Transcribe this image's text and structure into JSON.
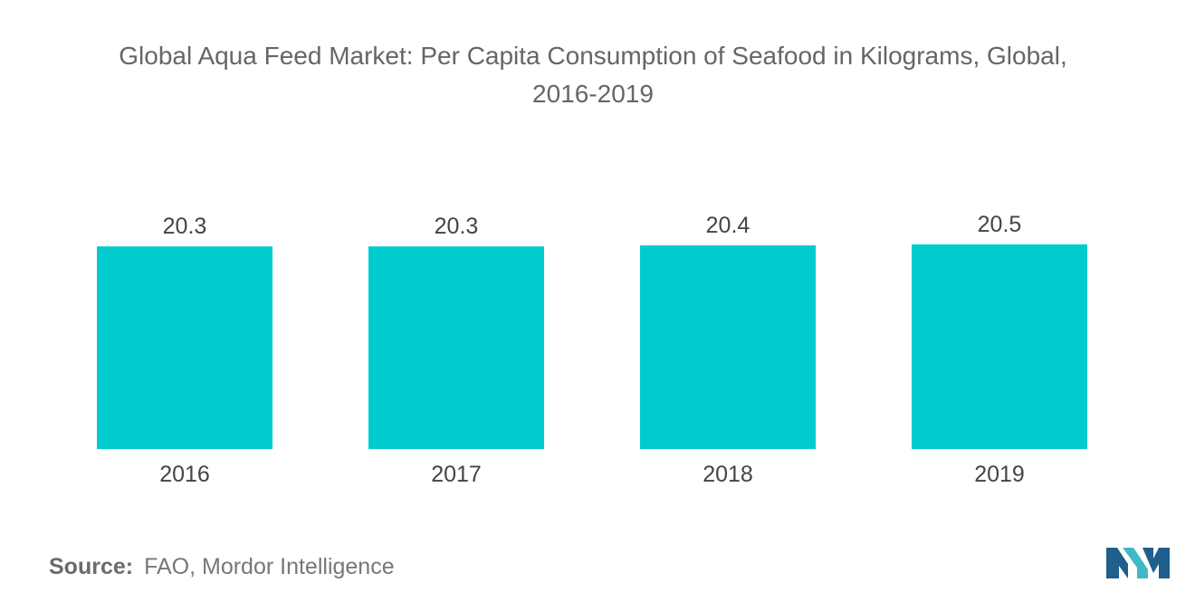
{
  "chart_data": {
    "type": "bar",
    "title": "Global Aqua Feed Market: Per Capita Consumption of Seafood in Kilograms, Global,",
    "title_line2": "2016-2019",
    "categories": [
      "2016",
      "2017",
      "2018",
      "2019"
    ],
    "values": [
      20.3,
      20.3,
      20.4,
      20.5
    ],
    "value_labels": [
      "20.3",
      "20.3",
      "20.4",
      "20.5"
    ],
    "xlabel": "",
    "ylabel": "",
    "ylim": [
      0,
      20.5
    ],
    "grid": false,
    "legend": "none",
    "bar_color": "#00ccce"
  },
  "source": {
    "label": "Source:",
    "text": "FAO, Mordor Intelligence"
  },
  "logo": {
    "name": "mordor-intelligence-logo",
    "colors": [
      "#1f5f8b",
      "#3fb8c9"
    ]
  }
}
